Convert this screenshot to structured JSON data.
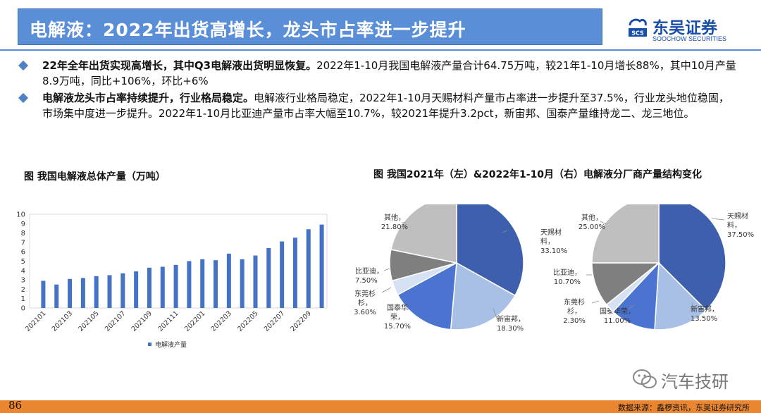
{
  "header": {
    "title": "电解液：2022年出货高增长，龙头市占率进一步提升",
    "logo_cn": "东吴证券",
    "logo_en": "SOOCHOW SECURITIES",
    "logo_mark": "SCS"
  },
  "bullets": [
    {
      "bold": "22年全年出货实现高增长，其中Q3电解液出货明显恢复。",
      "text": "2022年1-10月我国电解液产量合计64.75万吨，较21年1-10月增长88%，其中10月产量8.9万吨，同比+106%，环比+6%"
    },
    {
      "bold": "电解液龙头市占率持续提升，行业格局稳定。",
      "text": "电解液行业格局稳定，2022年1-10月天赐材料产量市占率进一步提升至37.5%，行业龙头地位稳固，市场集中度进一步提升。2022年1-10月比亚迪产量市占率大幅至10.7%，较2021年提升3.2pct，新宙邦、国泰产量维持龙二、龙三地位。"
    }
  ],
  "chart1_title": "图  我国电解液总体产量（万吨）",
  "chart2_title": "图 我国2021年（左）&2022年1-10月（右）电解液分厂商产量结构变化",
  "chart_data": [
    {
      "type": "bar",
      "categories": [
        "202101",
        "202102",
        "202103",
        "202104",
        "202105",
        "202106",
        "202107",
        "202108",
        "202109",
        "202110",
        "202111",
        "202112",
        "202201",
        "202202",
        "202203",
        "202204",
        "202205",
        "202206",
        "202207",
        "202208",
        "202209",
        "202210"
      ],
      "x_tick_labels": [
        "202101",
        "202103",
        "202105",
        "202107",
        "202109",
        "202111",
        "202201",
        "202203",
        "202205",
        "202207",
        "202209"
      ],
      "series": [
        {
          "name": "电解液产量",
          "values": [
            2.9,
            2.5,
            3.1,
            3.2,
            3.4,
            3.5,
            3.7,
            3.9,
            4.3,
            4.4,
            4.6,
            5.0,
            5.2,
            5.1,
            5.8,
            5.2,
            5.6,
            6.4,
            7.1,
            7.5,
            8.4,
            8.9
          ]
        }
      ],
      "ylim": [
        0,
        10
      ],
      "y_ticks": [
        0,
        1,
        2,
        3,
        4,
        5,
        6,
        7,
        8,
        9,
        10
      ],
      "grid": false,
      "legend": "bottom",
      "color": "#4472c4"
    },
    {
      "type": "pie",
      "labels": [
        {
          "line1": "天赐材",
          "line2": "料，",
          "pct": "33.10%"
        },
        {
          "line1": "新宙邦，",
          "line2": "",
          "pct": "18.30%"
        },
        {
          "line1": "国泰华",
          "line2": "荣，",
          "pct": "15.70%"
        },
        {
          "line1": "东莞杉",
          "line2": "杉，",
          "pct": "3.60%"
        },
        {
          "line1": "比亚迪，",
          "line2": "",
          "pct": "7.50%"
        },
        {
          "line1": "其他，",
          "line2": "",
          "pct": "21.80%"
        }
      ],
      "values": [
        33.1,
        18.3,
        15.7,
        3.6,
        7.5,
        21.8
      ],
      "colors": [
        "#3d5fad",
        "#a8c0e6",
        "#4a74cf",
        "#d6e2f4",
        "#7f7f7f",
        "#bfbfbf"
      ]
    },
    {
      "type": "pie",
      "labels": [
        {
          "line1": "天赐材",
          "line2": "料，",
          "pct": "37.50%"
        },
        {
          "line1": "新宙邦，",
          "line2": "",
          "pct": "13.50%"
        },
        {
          "line1": "国泰华荣，",
          "line2": "",
          "pct": "11.00%"
        },
        {
          "line1": "东莞杉",
          "line2": "杉，",
          "pct": "2.30%"
        },
        {
          "line1": "比亚迪，",
          "line2": "",
          "pct": "10.70%"
        },
        {
          "line1": "其他，",
          "line2": "",
          "pct": "25.00%"
        }
      ],
      "values": [
        37.5,
        13.5,
        11.0,
        2.3,
        10.7,
        25.0
      ],
      "colors": [
        "#3d5fad",
        "#a8c0e6",
        "#4a74cf",
        "#d6e2f4",
        "#7f7f7f",
        "#bfbfbf"
      ]
    }
  ],
  "legend_label": "电解液产量",
  "footer": {
    "page": "86",
    "source": "数据来源：鑫椤资讯，东吴证券研究所",
    "watermark": "汽车技研"
  }
}
